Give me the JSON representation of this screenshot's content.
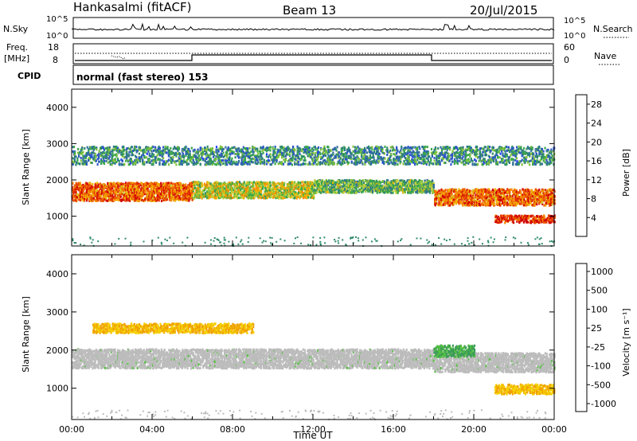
{
  "header": {
    "station": "Hankasalmi (fitACF)",
    "beam": "Beam 13",
    "date": "20/Jul/2015"
  },
  "strip_labels": {
    "nsky": "N.Sky",
    "nsky_ticks": [
      "10^5",
      "10^0"
    ],
    "nsearch": "N.Search",
    "nsearch_ticks": [
      "10^5",
      "10^0"
    ],
    "freq_line1": "Freq.",
    "freq_line2": "[MHz]",
    "freq_ticks": [
      "18",
      "8"
    ],
    "nave": "Nave",
    "nave_ticks": [
      "60",
      "0"
    ],
    "cpid": "CPID",
    "cpid_text": "normal (fast stereo) 153"
  },
  "chart_data": [
    {
      "type": "heatmap",
      "title": "",
      "ylabel": "Slant Range [km]",
      "xlabel": "",
      "xlim": [
        "00:00",
        "24:00"
      ],
      "ylim": [
        180,
        4500
      ],
      "yticks": [
        "1000",
        "2000",
        "3000",
        "4000"
      ],
      "colorbar": {
        "label": "Power [dB]",
        "range": [
          0,
          30
        ],
        "ticks": [
          "4",
          "8",
          "12",
          "16",
          "20",
          "24",
          "28"
        ],
        "colors": [
          "#1f3fff",
          "#2b55c8",
          "#2f6f9a",
          "#2e8a6a",
          "#3aa84a",
          "#7fc03a",
          "#c8d23a",
          "#f0b400",
          "#f58a00",
          "#f05a00",
          "#e03000",
          "#d00000"
        ]
      },
      "echo_bands": [
        {
          "from_hour": 0,
          "to_hour": 6,
          "center_km": 1700,
          "width_km": 500,
          "value_db": 24
        },
        {
          "from_hour": 6,
          "to_hour": 12,
          "center_km": 1750,
          "width_km": 450,
          "value_db": 16
        },
        {
          "from_hour": 12,
          "to_hour": 18,
          "center_km": 1850,
          "width_km": 350,
          "value_db": 12
        },
        {
          "from_hour": 18,
          "to_hour": 24,
          "center_km": 1550,
          "width_km": 450,
          "value_db": 24
        },
        {
          "from_hour": 21,
          "to_hour": 24,
          "center_km": 950,
          "width_km": 200,
          "value_db": 28
        },
        {
          "from_hour": 0,
          "to_hour": 24,
          "center_km": 2700,
          "width_km": 500,
          "value_db": 8
        }
      ]
    },
    {
      "type": "heatmap",
      "title": "",
      "ylabel": "Slant Range [km]",
      "xlabel": "Time UT",
      "xlim": [
        "00:00",
        "24:00"
      ],
      "ylim": [
        180,
        4500
      ],
      "xticks": [
        "00:00",
        "04:00",
        "08:00",
        "12:00",
        "16:00",
        "20:00",
        "00:00"
      ],
      "yticks": [
        "1000",
        "2000",
        "3000",
        "4000"
      ],
      "colorbar": {
        "label": "Velocity [m s⁻¹]",
        "ticks": [
          "1000",
          "500",
          "100",
          "25",
          "-25",
          "-100",
          "-500",
          "-1000"
        ],
        "colors": [
          "#1f3fb0",
          "#2f6fa0",
          "#3a9a5a",
          "#55c040",
          "#bcbcbc",
          "#bcbcbc",
          "#f5d000",
          "#f0a000",
          "#f06000",
          "#e00000"
        ]
      },
      "echo_bands": [
        {
          "from_hour": 0,
          "to_hour": 18,
          "center_km": 1800,
          "width_km": 500,
          "value_ms": 0
        },
        {
          "from_hour": 18,
          "to_hour": 24,
          "center_km": 1700,
          "width_km": 500,
          "value_ms": 0
        },
        {
          "from_hour": 1,
          "to_hour": 9,
          "center_km": 2600,
          "width_km": 250,
          "value_ms": -200
        },
        {
          "from_hour": 18,
          "to_hour": 20,
          "center_km": 2000,
          "width_km": 300,
          "value_ms": 100
        },
        {
          "from_hour": 21,
          "to_hour": 24,
          "center_km": 1000,
          "width_km": 250,
          "value_ms": -80
        }
      ]
    }
  ]
}
